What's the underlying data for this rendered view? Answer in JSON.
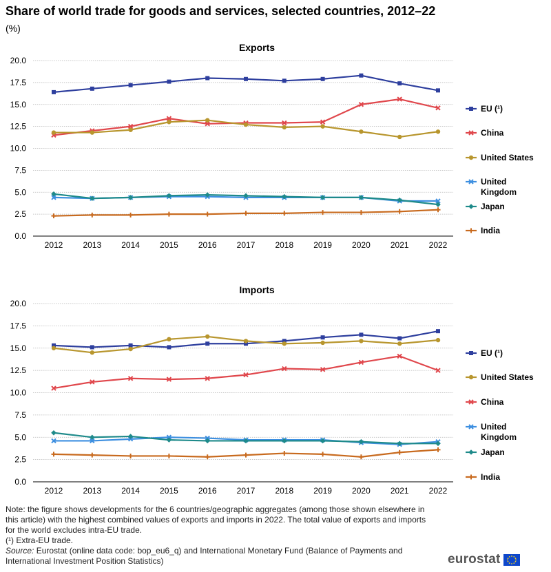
{
  "title": "Share of world trade for goods and services, selected countries, 2012–22",
  "subtitle": "(%)",
  "chart_data": [
    {
      "type": "line",
      "title": "Exports",
      "x": [
        "2012",
        "2013",
        "2014",
        "2015",
        "2016",
        "2017",
        "2018",
        "2019",
        "2020",
        "2021",
        "2022"
      ],
      "ylim": [
        0,
        20
      ],
      "yticks": [
        "0.0",
        "2.5",
        "5.0",
        "7.5",
        "10.0",
        "12.5",
        "15.0",
        "17.5",
        "20.0"
      ],
      "grid": true,
      "legend_position": "right",
      "series": [
        {
          "name": "EU (¹)",
          "color": "#2e3f9e",
          "marker": "square",
          "values": [
            16.4,
            16.8,
            17.2,
            17.6,
            18.0,
            17.9,
            17.7,
            17.9,
            18.3,
            17.4,
            16.6
          ]
        },
        {
          "name": "China",
          "color": "#e0474c",
          "marker": "x",
          "values": [
            11.5,
            12.0,
            12.5,
            13.4,
            12.8,
            12.9,
            12.9,
            13.0,
            15.0,
            15.6,
            14.6
          ]
        },
        {
          "name": "United States",
          "color": "#b8962e",
          "marker": "circle",
          "values": [
            11.8,
            11.8,
            12.1,
            13.0,
            13.2,
            12.7,
            12.4,
            12.5,
            11.9,
            11.3,
            11.9
          ]
        },
        {
          "name": "United Kingdom",
          "color": "#3d8fe0",
          "marker": "x",
          "values": [
            4.4,
            4.3,
            4.4,
            4.5,
            4.5,
            4.4,
            4.4,
            4.4,
            4.4,
            4.0,
            4.0
          ]
        },
        {
          "name": "Japan",
          "color": "#1e8a8a",
          "marker": "diamond",
          "values": [
            4.8,
            4.3,
            4.4,
            4.6,
            4.7,
            4.6,
            4.5,
            4.4,
            4.4,
            4.1,
            3.6
          ]
        },
        {
          "name": "India",
          "color": "#c86a1e",
          "marker": "plus",
          "values": [
            2.3,
            2.4,
            2.4,
            2.5,
            2.5,
            2.6,
            2.6,
            2.7,
            2.7,
            2.8,
            3.0
          ]
        }
      ]
    },
    {
      "type": "line",
      "title": "Imports",
      "x": [
        "2012",
        "2013",
        "2014",
        "2015",
        "2016",
        "2017",
        "2018",
        "2019",
        "2020",
        "2021",
        "2022"
      ],
      "ylim": [
        0,
        20
      ],
      "yticks": [
        "0.0",
        "2.5",
        "5.0",
        "7.5",
        "10.0",
        "12.5",
        "15.0",
        "17.5",
        "20.0"
      ],
      "grid": true,
      "legend_position": "right",
      "series": [
        {
          "name": "EU (¹)",
          "color": "#2e3f9e",
          "marker": "square",
          "values": [
            15.3,
            15.1,
            15.3,
            15.1,
            15.5,
            15.5,
            15.8,
            16.2,
            16.5,
            16.1,
            16.9
          ]
        },
        {
          "name": "United States",
          "color": "#b8962e",
          "marker": "circle",
          "values": [
            15.0,
            14.5,
            14.9,
            16.0,
            16.3,
            15.8,
            15.5,
            15.6,
            15.8,
            15.5,
            15.9
          ]
        },
        {
          "name": "China",
          "color": "#e0474c",
          "marker": "x",
          "values": [
            10.5,
            11.2,
            11.6,
            11.5,
            11.6,
            12.0,
            12.7,
            12.6,
            13.4,
            14.1,
            12.5
          ]
        },
        {
          "name": "United Kingdom",
          "color": "#3d8fe0",
          "marker": "x",
          "values": [
            4.6,
            4.6,
            4.8,
            5.0,
            4.9,
            4.7,
            4.7,
            4.7,
            4.4,
            4.2,
            4.5
          ]
        },
        {
          "name": "Japan",
          "color": "#1e8a8a",
          "marker": "diamond",
          "values": [
            5.5,
            5.0,
            5.1,
            4.7,
            4.6,
            4.6,
            4.6,
            4.6,
            4.5,
            4.3,
            4.3
          ]
        },
        {
          "name": "India",
          "color": "#c86a1e",
          "marker": "plus",
          "values": [
            3.1,
            3.0,
            2.9,
            2.9,
            2.8,
            3.0,
            3.2,
            3.1,
            2.8,
            3.3,
            3.6
          ]
        }
      ]
    }
  ],
  "notes": {
    "note": "Note: the figure shows developments for the 6 countries/geographic aggregates (among those shown elsewhere in this article) with the highest combined values of exports and imports in 2022. The total value of exports and imports for the world excludes intra-EU trade.",
    "footnote": "(¹) Extra-EU trade.",
    "source_label": "Source:",
    "source_text": "Eurostat (online data code: bop_eu6_q) and International Monetary Fund (Balance of Payments and International Investment Position Statistics)"
  },
  "logo": {
    "text": "eurostat",
    "color": "#0e47cb"
  }
}
